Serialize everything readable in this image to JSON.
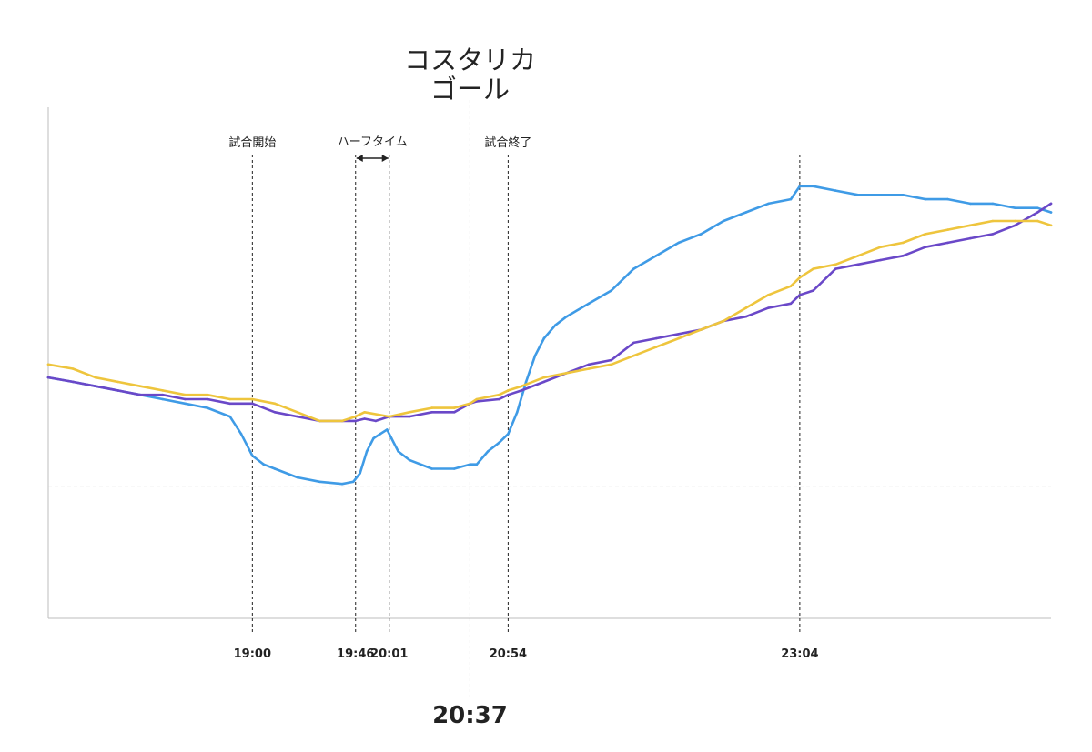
{
  "chart_data": {
    "type": "line",
    "title": "",
    "xlabel": "",
    "ylabel": "",
    "x_unit": "minutes_since_00:00",
    "xlim": [
      1049,
      1496
    ],
    "ylim": [
      0,
      100
    ],
    "baseline_value": 30,
    "grid": false,
    "legend": "none",
    "x_ticks": [
      {
        "value": 1140,
        "label": "19:00"
      },
      {
        "value": 1186,
        "label": "19:46"
      },
      {
        "value": 1201,
        "label": "20:01"
      },
      {
        "value": 1254,
        "label": "20:54"
      },
      {
        "value": 1384,
        "label": "23:04"
      }
    ],
    "events": [
      {
        "value": 1140,
        "label": "試合開始"
      },
      {
        "value": 1254,
        "label": "試合終了"
      }
    ],
    "halftime": {
      "start": 1186,
      "end": 1201,
      "label": "ハーフタイム"
    },
    "goal": {
      "value": 1237,
      "title_line1": "コスタリカ",
      "title_line2": "ゴール",
      "time_label": "20:37"
    },
    "series": [
      {
        "color": "#3f9be6",
        "x": [
          1049,
          1060,
          1070,
          1080,
          1090,
          1100,
          1110,
          1120,
          1130,
          1135,
          1140,
          1145,
          1150,
          1160,
          1170,
          1180,
          1185,
          1188,
          1191,
          1194,
          1197,
          1200,
          1202,
          1205,
          1210,
          1220,
          1230,
          1237,
          1240,
          1245,
          1250,
          1254,
          1258,
          1262,
          1266,
          1270,
          1275,
          1280,
          1290,
          1300,
          1310,
          1320,
          1330,
          1340,
          1350,
          1360,
          1370,
          1380,
          1384,
          1390,
          1400,
          1410,
          1420,
          1430,
          1440,
          1450,
          1460,
          1470,
          1480,
          1490,
          1496
        ],
        "y": [
          55,
          54,
          53,
          52,
          51,
          50,
          49,
          48,
          46,
          42,
          37,
          35,
          34,
          32,
          31,
          30.5,
          31,
          33,
          38,
          41,
          42,
          43,
          41,
          38,
          36,
          34,
          34,
          35,
          35,
          38,
          40,
          42,
          47,
          54,
          60,
          64,
          67,
          69,
          72,
          75,
          80,
          83,
          86,
          88,
          91,
          93,
          95,
          96,
          99,
          99,
          98,
          97,
          97,
          97,
          96,
          96,
          95,
          95,
          94,
          94,
          93
        ]
      },
      {
        "color": "#6a48c8",
        "x": [
          1049,
          1060,
          1070,
          1080,
          1090,
          1100,
          1110,
          1120,
          1130,
          1140,
          1150,
          1160,
          1170,
          1180,
          1186,
          1190,
          1195,
          1201,
          1210,
          1220,
          1230,
          1237,
          1240,
          1250,
          1254,
          1260,
          1270,
          1280,
          1290,
          1300,
          1310,
          1320,
          1330,
          1340,
          1350,
          1360,
          1370,
          1380,
          1384,
          1390,
          1400,
          1410,
          1420,
          1430,
          1440,
          1450,
          1460,
          1470,
          1480,
          1490,
          1496
        ],
        "y": [
          55,
          54,
          53,
          52,
          51,
          51,
          50,
          50,
          49,
          49,
          47,
          46,
          45,
          45,
          45,
          45.5,
          45,
          46,
          46,
          47,
          47,
          49,
          49.5,
          50,
          51,
          52,
          54,
          56,
          58,
          59,
          63,
          64,
          65,
          66,
          68,
          69,
          71,
          72,
          74,
          75,
          80,
          81,
          82,
          83,
          85,
          86,
          87,
          88,
          90,
          93,
          95
        ]
      },
      {
        "color": "#eec53d",
        "x": [
          1049,
          1060,
          1070,
          1080,
          1090,
          1100,
          1110,
          1120,
          1130,
          1140,
          1150,
          1160,
          1170,
          1180,
          1186,
          1190,
          1201,
          1210,
          1220,
          1230,
          1237,
          1240,
          1250,
          1254,
          1260,
          1270,
          1280,
          1290,
          1300,
          1310,
          1320,
          1330,
          1340,
          1350,
          1360,
          1370,
          1380,
          1384,
          1390,
          1400,
          1410,
          1420,
          1430,
          1440,
          1450,
          1460,
          1470,
          1480,
          1490,
          1496
        ],
        "y": [
          58,
          57,
          55,
          54,
          53,
          52,
          51,
          51,
          50,
          50,
          49,
          47,
          45,
          45,
          46,
          47,
          46,
          47,
          48,
          48,
          49,
          50,
          51,
          52,
          53,
          55,
          56,
          57,
          58,
          60,
          62,
          64,
          66,
          68,
          71,
          74,
          76,
          78,
          80,
          81,
          83,
          85,
          86,
          88,
          89,
          90,
          91,
          91,
          91,
          90
        ]
      }
    ]
  }
}
